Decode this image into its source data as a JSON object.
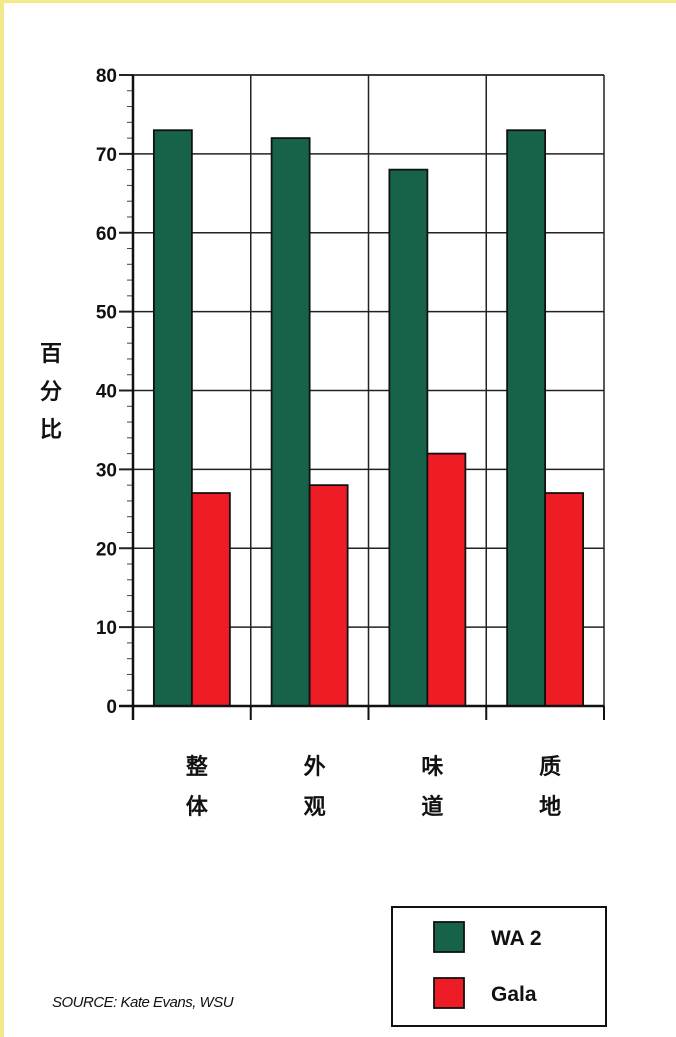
{
  "chart_data": {
    "type": "bar",
    "categories": [
      "整体",
      "外观",
      "味道",
      "质地"
    ],
    "series": [
      {
        "name": "WA 2",
        "values": [
          73,
          72,
          68,
          73
        ],
        "color": "#17634a"
      },
      {
        "name": "Gala",
        "values": [
          27,
          28,
          32,
          27
        ],
        "color": "#ee1c25"
      }
    ],
    "ylabel": "百分比",
    "ylim": [
      0,
      80
    ],
    "yticks": [
      0,
      10,
      20,
      30,
      40,
      50,
      60,
      70,
      80
    ],
    "grid": true,
    "legend_placement": "bottom-right",
    "source": "SOURCE: Kate Evans, WSU"
  }
}
